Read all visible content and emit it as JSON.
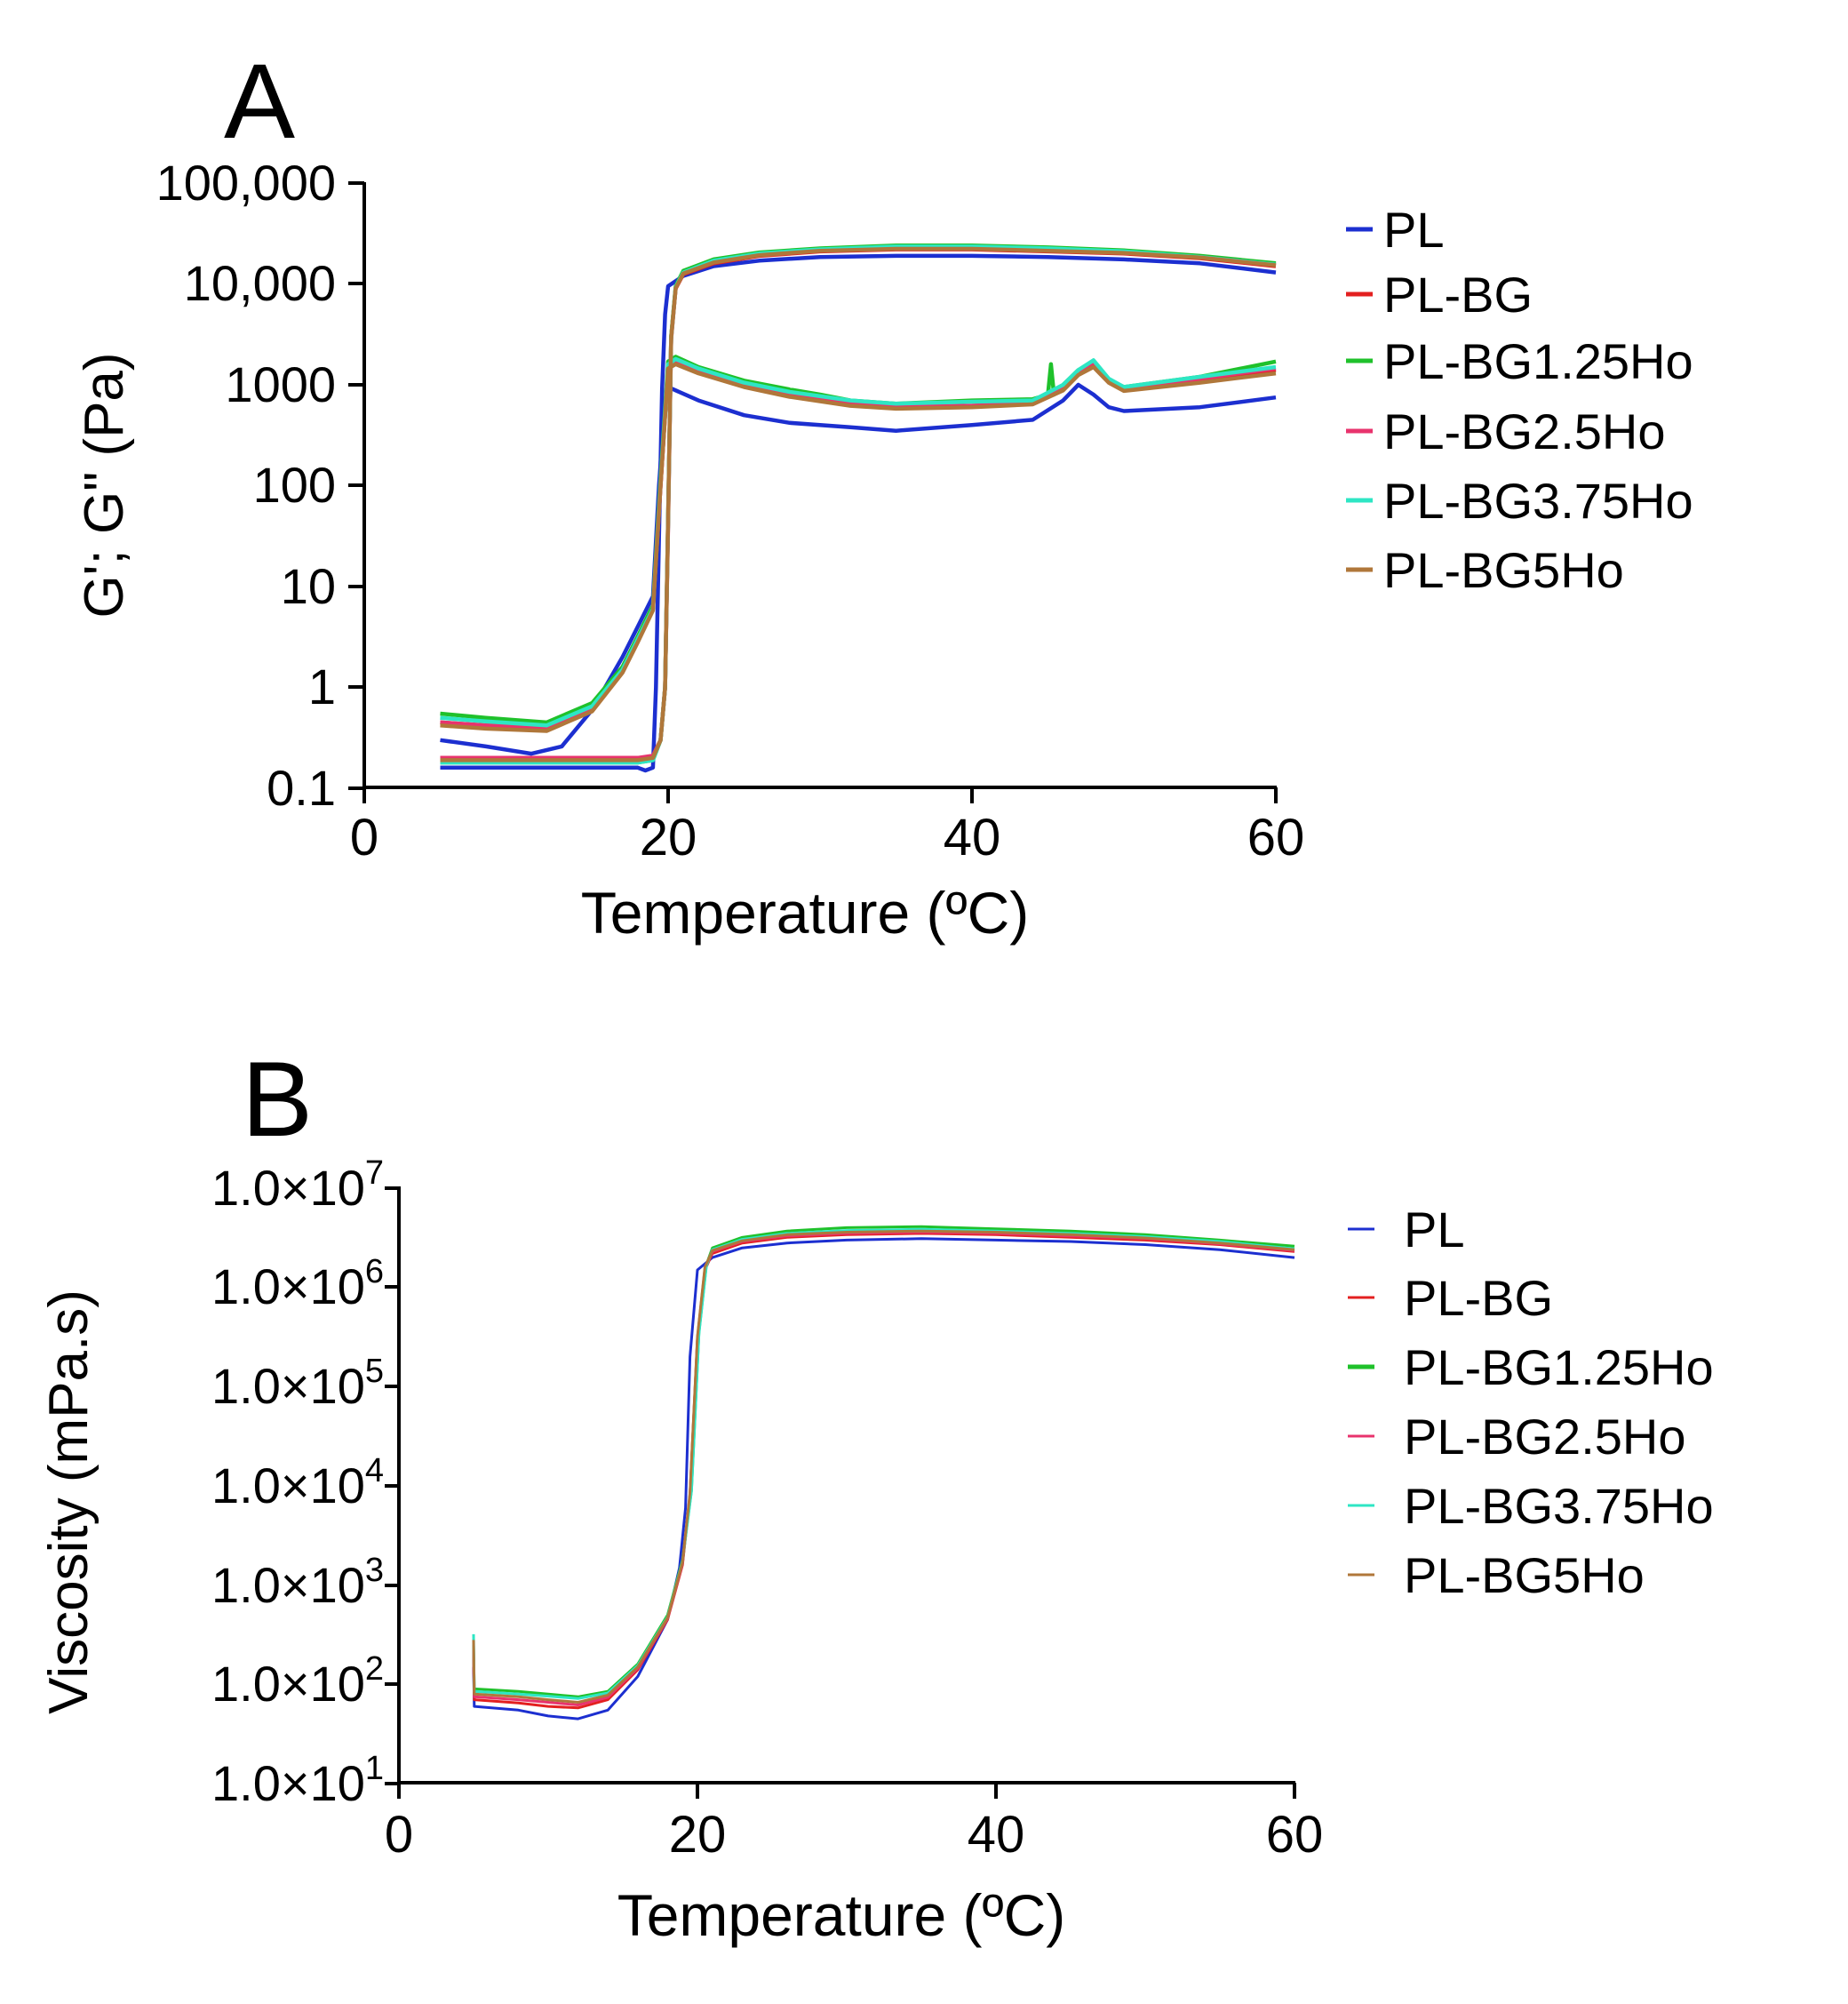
{
  "chart_data": [
    {
      "panel_label": "A",
      "type": "line",
      "xlabel": "Temperature (ºC)",
      "ylabel": "G'; G\" (Pa)",
      "xlim": [
        0,
        60
      ],
      "ylim": [
        0.1,
        100000
      ],
      "yscale": "log",
      "xticks": [
        0,
        20,
        40,
        60
      ],
      "xtick_labels": [
        "0",
        "20",
        "40",
        "60"
      ],
      "yticks": [
        0.1,
        1,
        10,
        100,
        1000,
        10000,
        100000
      ],
      "ytick_labels": [
        "0.1",
        "1",
        "10",
        "100",
        "1000",
        "10,000",
        "100,000"
      ],
      "grid": false,
      "legend_position": "right",
      "series": [
        {
          "name": "PL",
          "color": "#1c2fd0",
          "storage_modulus": {
            "x": [
              5,
              8,
              12,
              15,
              17,
              18,
              18.5,
              19,
              19.2,
              19.4,
              19.6,
              19.8,
              20,
              21,
              23,
              26,
              30,
              35,
              40,
              45,
              50,
              55,
              60
            ],
            "y": [
              0.16,
              0.16,
              0.16,
              0.16,
              0.16,
              0.16,
              0.15,
              0.16,
              1,
              30,
              900,
              5000,
              9500,
              12000,
              15000,
              17000,
              18500,
              19000,
              19000,
              18500,
              17500,
              16000,
              13000
            ]
          },
          "loss_modulus": {
            "x": [
              5,
              8,
              11,
              13,
              15,
              17,
              18,
              19,
              19.4,
              19.8,
              20,
              22,
              25,
              28,
              32,
              35,
              40,
              44,
              46,
              47,
              48,
              49,
              50,
              55,
              60
            ],
            "y": [
              0.3,
              0.26,
              0.22,
              0.26,
              0.6,
              2,
              4,
              8,
              100,
              700,
              950,
              700,
              500,
              420,
              380,
              350,
              400,
              450,
              700,
              1000,
              800,
              600,
              550,
              600,
              750
            ]
          }
        },
        {
          "name": "PL-BG",
          "color": "#e32020",
          "storage_modulus": {
            "x": [
              5,
              10,
              15,
              18,
              19,
              19.5,
              19.8,
              20,
              20.2,
              20.5,
              21,
              23,
              26,
              30,
              35,
              40,
              45,
              50,
              55,
              60
            ],
            "y": [
              0.19,
              0.19,
              0.19,
              0.19,
              0.2,
              0.3,
              1,
              50,
              3000,
              9000,
              12500,
              16000,
              19000,
              21000,
              22000,
              22000,
              21000,
              20000,
              18000,
              15000
            ]
          },
          "loss_modulus": {
            "x": [
              5,
              8,
              12,
              15,
              17,
              18,
              19,
              19.5,
              20,
              20.5,
              22,
              25,
              28,
              32,
              35,
              40,
              44,
              46,
              47,
              48,
              49,
              50,
              55,
              60
            ],
            "y": [
              0.45,
              0.42,
              0.4,
              0.6,
              1.5,
              3,
              6,
              100,
              1500,
              1700,
              1400,
              1000,
              800,
              650,
              600,
              620,
              650,
              900,
              1300,
              1600,
              1100,
              900,
              1100,
              1400
            ]
          }
        },
        {
          "name": "PL-BG1.25Ho",
          "color": "#1fc12b",
          "storage_modulus": {
            "x": [
              5,
              10,
              15,
              18,
              19,
              19.5,
              19.8,
              20,
              20.2,
              20.5,
              21,
              23,
              26,
              30,
              35,
              40,
              45,
              50,
              55,
              60
            ],
            "y": [
              0.18,
              0.18,
              0.18,
              0.18,
              0.19,
              0.3,
              1,
              50,
              3000,
              9500,
              13500,
              17500,
              20500,
              22500,
              24000,
              24000,
              23000,
              21500,
              19000,
              16000
            ]
          },
          "loss_modulus": {
            "x": [
              5,
              8,
              12,
              15,
              17,
              18,
              19,
              19.5,
              20,
              20.5,
              22,
              25,
              28,
              30,
              32,
              35,
              40,
              44,
              45,
              45.2,
              45.4,
              46,
              47,
              48,
              49,
              50,
              55,
              60
            ],
            "y": [
              0.55,
              0.5,
              0.45,
              0.7,
              1.6,
              3.2,
              6.5,
              120,
              1700,
              1900,
              1500,
              1100,
              900,
              800,
              700,
              650,
              700,
              720,
              800,
              1600,
              800,
              1000,
              1400,
              1700,
              1100,
              950,
              1200,
              1700
            ]
          }
        },
        {
          "name": "PL-BG2.5Ho",
          "color": "#e8336d",
          "storage_modulus": {
            "x": [
              5,
              10,
              15,
              18,
              19,
              19.5,
              19.8,
              20,
              20.2,
              20.5,
              21,
              23,
              26,
              30,
              35,
              40,
              45,
              50,
              55,
              60
            ],
            "y": [
              0.2,
              0.2,
              0.2,
              0.2,
              0.21,
              0.3,
              1,
              40,
              2800,
              9200,
              12800,
              16500,
              19500,
              21500,
              22500,
              22500,
              21500,
              20500,
              18500,
              15500
            ]
          },
          "loss_modulus": {
            "x": [
              5,
              8,
              12,
              15,
              17,
              18,
              19,
              19.5,
              20,
              20.5,
              22,
              25,
              28,
              32,
              35,
              40,
              44,
              46,
              47,
              48,
              49,
              50,
              55,
              60
            ],
            "y": [
              0.45,
              0.42,
              0.4,
              0.6,
              1.5,
              3,
              6,
              100,
              1500,
              1650,
              1350,
              1000,
              800,
              650,
              600,
              620,
              660,
              950,
              1350,
              1600,
              1100,
              900,
              1150,
              1450
            ]
          }
        },
        {
          "name": "PL-BG3.75Ho",
          "color": "#2ee6c4",
          "storage_modulus": {
            "x": [
              5,
              10,
              15,
              18,
              19,
              19.5,
              19.8,
              20,
              20.2,
              20.5,
              21,
              23,
              26,
              30,
              35,
              40,
              45,
              50,
              55,
              60
            ],
            "y": [
              0.18,
              0.18,
              0.18,
              0.18,
              0.19,
              0.3,
              1,
              45,
              2900,
              9300,
              13000,
              17000,
              20000,
              22000,
              23500,
              23500,
              22500,
              21000,
              18500,
              15500
            ]
          },
          "loss_modulus": {
            "x": [
              5,
              8,
              12,
              15,
              17,
              18,
              19,
              19.5,
              20,
              20.5,
              22,
              25,
              28,
              32,
              35,
              40,
              44,
              46,
              47,
              48,
              49,
              50,
              55,
              60
            ],
            "y": [
              0.5,
              0.46,
              0.42,
              0.65,
              1.5,
              3,
              6,
              110,
              1600,
              1800,
              1450,
              1050,
              850,
              700,
              650,
              680,
              700,
              1000,
              1400,
              1750,
              1150,
              950,
              1200,
              1500
            ]
          }
        },
        {
          "name": "PL-BG5Ho",
          "color": "#b0773a",
          "storage_modulus": {
            "x": [
              5,
              10,
              15,
              18,
              19,
              19.5,
              19.8,
              20,
              20.2,
              20.5,
              21,
              23,
              26,
              30,
              35,
              40,
              45,
              50,
              55,
              60
            ],
            "y": [
              0.19,
              0.19,
              0.19,
              0.19,
              0.2,
              0.3,
              1,
              45,
              2900,
              9100,
              12700,
              16300,
              19300,
              21300,
              22300,
              22300,
              21300,
              20300,
              18300,
              15300
            ]
          },
          "loss_modulus": {
            "x": [
              5,
              8,
              12,
              15,
              17,
              18,
              19,
              19.5,
              20,
              20.5,
              22,
              25,
              28,
              32,
              35,
              40,
              44,
              46,
              47,
              48,
              49,
              50,
              55,
              60
            ],
            "y": [
              0.42,
              0.39,
              0.37,
              0.58,
              1.4,
              2.8,
              5.8,
              100,
              1450,
              1600,
              1300,
              950,
              760,
              620,
              580,
              600,
              640,
              880,
              1250,
              1500,
              1050,
              870,
              1050,
              1300
            ]
          }
        }
      ]
    },
    {
      "panel_label": "B",
      "type": "line",
      "xlabel": "Temperature (ºC)",
      "ylabel": "Viscosity (mPa.s)",
      "xlim": [
        0,
        60
      ],
      "ylim": [
        10,
        10000000
      ],
      "yscale": "log",
      "xticks": [
        0,
        20,
        40,
        60
      ],
      "xtick_labels": [
        "0",
        "20",
        "40",
        "60"
      ],
      "yticks": [
        10,
        100,
        1000,
        10000,
        100000,
        1000000,
        10000000
      ],
      "ytick_labels": [
        {
          "mantissa": "1.0×10",
          "exp": "1"
        },
        {
          "mantissa": "1.0×10",
          "exp": "2"
        },
        {
          "mantissa": "1.0×10",
          "exp": "3"
        },
        {
          "mantissa": "1.0×10",
          "exp": "4"
        },
        {
          "mantissa": "1.0×10",
          "exp": "5"
        },
        {
          "mantissa": "1.0×10",
          "exp": "6"
        },
        {
          "mantissa": "1.0×10",
          "exp": "7"
        }
      ],
      "grid": false,
      "legend_position": "right",
      "series": [
        {
          "name": "PL",
          "color": "#1c2fd0",
          "x": [
            5,
            5.05,
            8,
            10,
            12,
            14,
            16,
            18,
            18.8,
            19.2,
            19.5,
            20,
            21,
            23,
            26,
            30,
            35,
            40,
            45,
            50,
            55,
            60
          ],
          "y": [
            150,
            60,
            55,
            48,
            45,
            55,
            120,
            450,
            1500,
            6000,
            200000,
            1500000,
            2000000,
            2500000,
            2800000,
            3000000,
            3100000,
            3000000,
            2900000,
            2700000,
            2400000,
            2000000
          ]
        },
        {
          "name": "PL-BG",
          "color": "#e32020",
          "x": [
            5,
            5.05,
            8,
            10,
            12,
            14,
            16,
            18,
            19,
            19.5,
            20,
            20.5,
            21,
            23,
            26,
            30,
            35,
            40,
            45,
            50,
            55,
            60
          ],
          "y": [
            200,
            70,
            65,
            60,
            58,
            70,
            140,
            450,
            1600,
            8000,
            300000,
            1500000,
            2200000,
            2800000,
            3200000,
            3400000,
            3500000,
            3400000,
            3200000,
            3000000,
            2700000,
            2300000
          ]
        },
        {
          "name": "PL-BG1.25Ho",
          "color": "#1fc12b",
          "x": [
            5,
            5.05,
            8,
            10,
            12,
            14,
            16,
            18,
            19,
            19.6,
            20.1,
            20.6,
            21,
            23,
            26,
            30,
            35,
            40,
            45,
            50,
            55,
            60
          ],
          "y": [
            250,
            90,
            85,
            80,
            75,
            85,
            160,
            500,
            1800,
            9000,
            350000,
            1700000,
            2500000,
            3200000,
            3700000,
            4000000,
            4100000,
            3900000,
            3700000,
            3400000,
            3000000,
            2600000
          ]
        },
        {
          "name": "PL-BG2.5Ho",
          "color": "#e8336d",
          "x": [
            5,
            5.05,
            8,
            10,
            12,
            14,
            16,
            18,
            19,
            19.5,
            20,
            20.5,
            21,
            23,
            26,
            30,
            35,
            40,
            45,
            50,
            55,
            60
          ],
          "y": [
            220,
            75,
            70,
            66,
            62,
            74,
            145,
            460,
            1650,
            8200,
            310000,
            1550000,
            2300000,
            2900000,
            3300000,
            3500000,
            3600000,
            3500000,
            3300000,
            3100000,
            2750000,
            2350000
          ]
        },
        {
          "name": "PL-BG3.75Ho",
          "color": "#2ee6c4",
          "x": [
            5,
            5.05,
            8,
            10,
            12,
            14,
            16,
            18,
            19,
            19.6,
            20.1,
            20.6,
            21,
            23,
            26,
            30,
            35,
            40,
            45,
            50,
            55,
            60
          ],
          "y": [
            320,
            85,
            80,
            76,
            72,
            82,
            155,
            480,
            1750,
            8800,
            340000,
            1650000,
            2400000,
            3050000,
            3500000,
            3750000,
            3850000,
            3700000,
            3500000,
            3250000,
            2900000,
            2450000
          ]
        },
        {
          "name": "PL-BG5Ho",
          "color": "#b0773a",
          "x": [
            5,
            5.05,
            8,
            10,
            12,
            14,
            16,
            18,
            19,
            19.5,
            20,
            20.5,
            21,
            23,
            26,
            30,
            35,
            40,
            45,
            50,
            55,
            60
          ],
          "y": [
            280,
            80,
            75,
            70,
            66,
            78,
            150,
            470,
            1700,
            8500,
            320000,
            1600000,
            2350000,
            2950000,
            3400000,
            3600000,
            3700000,
            3600000,
            3400000,
            3150000,
            2800000,
            2400000
          ]
        }
      ]
    }
  ]
}
